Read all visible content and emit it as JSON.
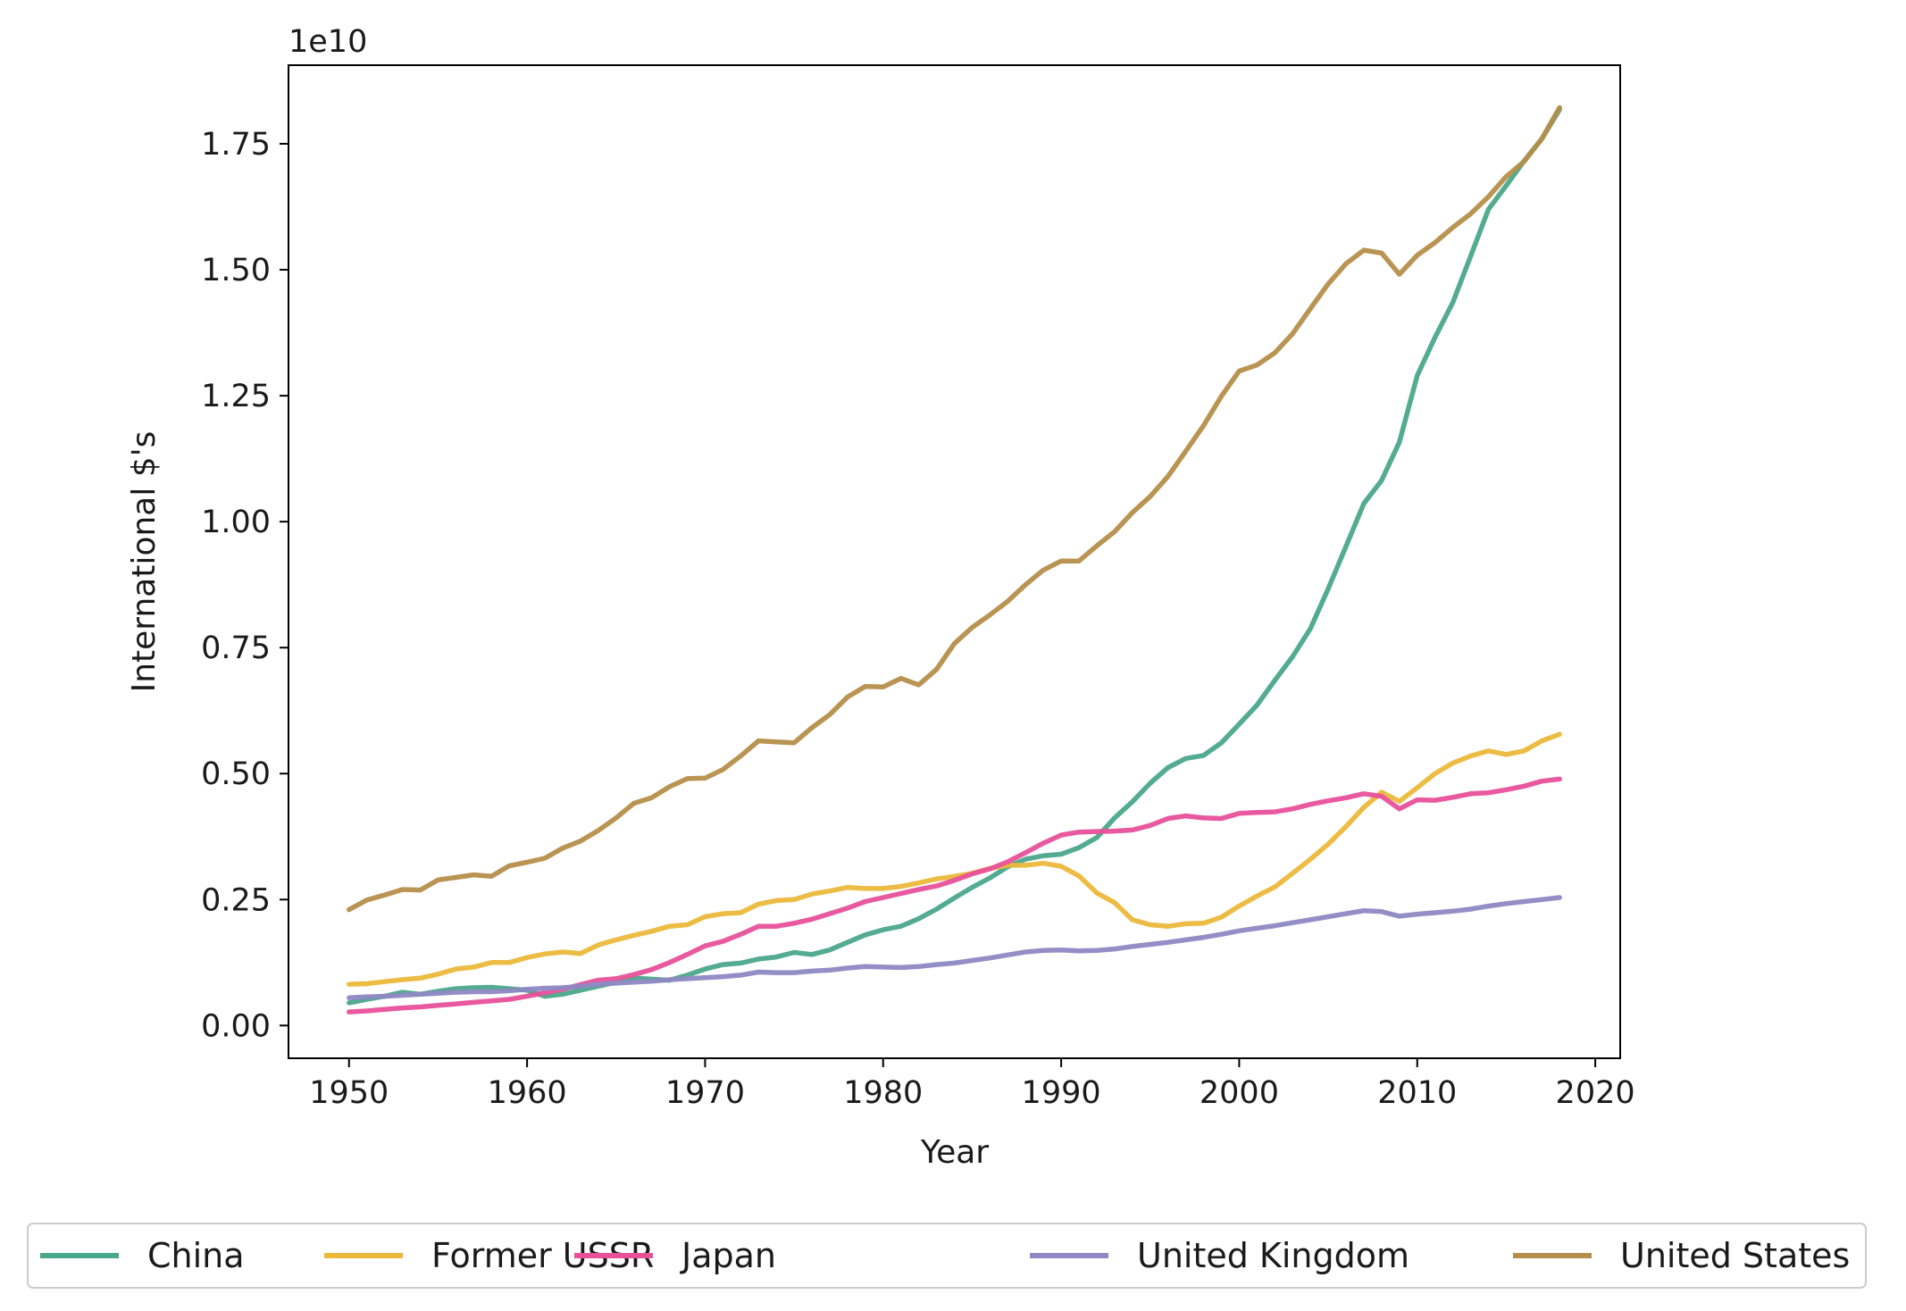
{
  "chart_data": {
    "type": "line",
    "title": "",
    "xlabel": "Year",
    "ylabel": "International $'s",
    "y_scale_label": "1e10",
    "xlim": [
      1946.6,
      2021.4
    ],
    "ylim": [
      -0.065,
      1.906
    ],
    "x_ticks": [
      1950,
      1960,
      1970,
      1980,
      1990,
      2000,
      2010,
      2020
    ],
    "x_tick_labels": [
      "1950",
      "1960",
      "1970",
      "1980",
      "1990",
      "2000",
      "2010",
      "2020"
    ],
    "y_ticks": [
      0.0,
      0.25,
      0.5,
      0.75,
      1.0,
      1.25,
      1.5,
      1.75
    ],
    "y_tick_labels": [
      "0.00",
      "0.25",
      "0.50",
      "0.75",
      "1.00",
      "1.25",
      "1.50",
      "1.75"
    ],
    "grid": false,
    "legend_position": "bottom-center",
    "x_start": 1950,
    "x_end": 2018,
    "series": [
      {
        "name": "China",
        "color": "#4aa88a",
        "values": [
          0.045,
          0.052,
          0.058,
          0.066,
          0.062,
          0.068,
          0.073,
          0.075,
          0.076,
          0.073,
          0.07,
          0.058,
          0.062,
          0.07,
          0.078,
          0.086,
          0.094,
          0.092,
          0.09,
          0.1,
          0.112,
          0.121,
          0.124,
          0.132,
          0.136,
          0.145,
          0.141,
          0.15,
          0.165,
          0.18,
          0.19,
          0.197,
          0.212,
          0.231,
          0.253,
          0.274,
          0.293,
          0.315,
          0.33,
          0.337,
          0.34,
          0.353,
          0.373,
          0.412,
          0.444,
          0.481,
          0.512,
          0.53,
          0.536,
          0.561,
          0.598,
          0.636,
          0.685,
          0.732,
          0.788,
          0.867,
          0.951,
          1.036,
          1.082,
          1.158,
          1.29,
          1.366,
          1.435,
          1.527,
          1.62,
          1.667,
          1.716,
          1.76,
          1.818
        ]
      },
      {
        "name": "Former USSR",
        "color": "#ebb83a",
        "values": [
          0.082,
          0.083,
          0.087,
          0.091,
          0.094,
          0.102,
          0.112,
          0.116,
          0.125,
          0.125,
          0.135,
          0.142,
          0.146,
          0.143,
          0.16,
          0.17,
          0.179,
          0.187,
          0.197,
          0.2,
          0.216,
          0.222,
          0.224,
          0.241,
          0.248,
          0.25,
          0.261,
          0.267,
          0.274,
          0.272,
          0.272,
          0.276,
          0.283,
          0.291,
          0.296,
          0.302,
          0.312,
          0.318,
          0.318,
          0.322,
          0.316,
          0.297,
          0.263,
          0.244,
          0.21,
          0.2,
          0.197,
          0.202,
          0.203,
          0.215,
          0.237,
          0.257,
          0.275,
          0.302,
          0.33,
          0.36,
          0.395,
          0.433,
          0.463,
          0.445,
          0.472,
          0.5,
          0.521,
          0.535,
          0.545,
          0.538,
          0.545,
          0.565,
          0.578
        ]
      },
      {
        "name": "Japan",
        "color": "#e8509a",
        "values": [
          0.027,
          0.029,
          0.032,
          0.035,
          0.037,
          0.04,
          0.043,
          0.046,
          0.049,
          0.052,
          0.058,
          0.065,
          0.072,
          0.081,
          0.09,
          0.093,
          0.101,
          0.111,
          0.125,
          0.141,
          0.158,
          0.167,
          0.181,
          0.197,
          0.197,
          0.203,
          0.211,
          0.222,
          0.233,
          0.246,
          0.254,
          0.262,
          0.27,
          0.277,
          0.288,
          0.301,
          0.311,
          0.325,
          0.343,
          0.362,
          0.378,
          0.384,
          0.385,
          0.386,
          0.388,
          0.397,
          0.411,
          0.416,
          0.412,
          0.411,
          0.421,
          0.423,
          0.424,
          0.43,
          0.439,
          0.446,
          0.452,
          0.46,
          0.455,
          0.43,
          0.448,
          0.447,
          0.453,
          0.46,
          0.462,
          0.468,
          0.475,
          0.485,
          0.489
        ]
      },
      {
        "name": "United Kingdom",
        "color": "#8e88c4",
        "values": [
          0.055,
          0.057,
          0.058,
          0.06,
          0.062,
          0.064,
          0.066,
          0.067,
          0.067,
          0.069,
          0.072,
          0.074,
          0.075,
          0.078,
          0.082,
          0.084,
          0.086,
          0.088,
          0.091,
          0.093,
          0.095,
          0.097,
          0.1,
          0.106,
          0.105,
          0.105,
          0.108,
          0.11,
          0.114,
          0.117,
          0.116,
          0.115,
          0.117,
          0.121,
          0.124,
          0.129,
          0.134,
          0.14,
          0.146,
          0.149,
          0.15,
          0.148,
          0.149,
          0.152,
          0.157,
          0.161,
          0.165,
          0.17,
          0.175,
          0.181,
          0.188,
          0.193,
          0.198,
          0.204,
          0.21,
          0.216,
          0.222,
          0.228,
          0.226,
          0.217,
          0.221,
          0.224,
          0.227,
          0.231,
          0.237,
          0.242,
          0.246,
          0.25,
          0.254
        ]
      },
      {
        "name": "United States",
        "color": "#b58e4a",
        "values": [
          0.23,
          0.249,
          0.259,
          0.27,
          0.269,
          0.289,
          0.294,
          0.299,
          0.296,
          0.317,
          0.324,
          0.332,
          0.352,
          0.366,
          0.387,
          0.412,
          0.441,
          0.452,
          0.474,
          0.49,
          0.491,
          0.508,
          0.535,
          0.565,
          0.563,
          0.561,
          0.591,
          0.617,
          0.652,
          0.673,
          0.672,
          0.689,
          0.676,
          0.707,
          0.758,
          0.79,
          0.815,
          0.842,
          0.875,
          0.904,
          0.922,
          0.922,
          0.952,
          0.98,
          1.018,
          1.05,
          1.09,
          1.14,
          1.191,
          1.249,
          1.299,
          1.311,
          1.335,
          1.373,
          1.423,
          1.472,
          1.512,
          1.539,
          1.533,
          1.491,
          1.529,
          1.554,
          1.584,
          1.611,
          1.645,
          1.685,
          1.715,
          1.76,
          1.822
        ]
      }
    ]
  }
}
